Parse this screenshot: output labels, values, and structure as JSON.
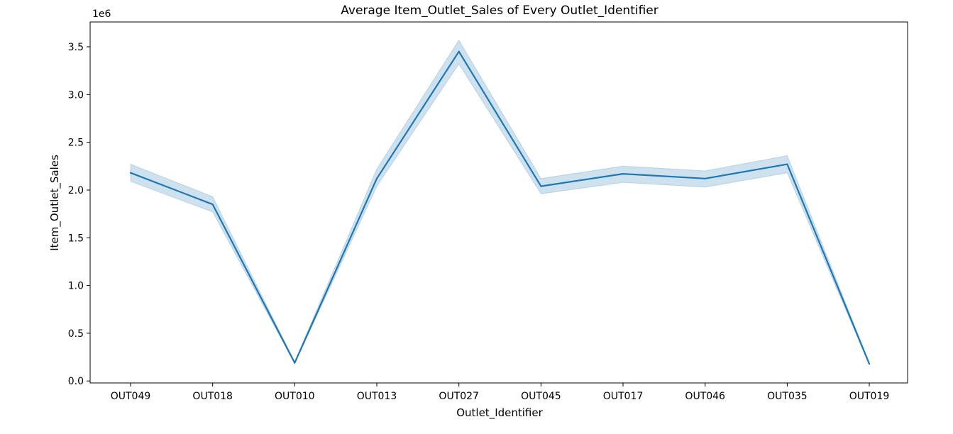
{
  "chart_data": {
    "type": "line",
    "title": "Average Item_Outlet_Sales of Every Outlet_Identifier",
    "xlabel": "Outlet_Identifier",
    "ylabel": "Item_Outlet_Sales",
    "y_multiplier_label": "1e6",
    "categories": [
      "OUT049",
      "OUT018",
      "OUT010",
      "OUT013",
      "OUT027",
      "OUT045",
      "OUT017",
      "OUT046",
      "OUT035",
      "OUT019"
    ],
    "series": [
      {
        "values": [
          2.18,
          1.85,
          0.19,
          2.12,
          3.45,
          2.04,
          2.17,
          2.12,
          2.27,
          0.18
        ],
        "ci_lower": [
          2.09,
          1.77,
          0.18,
          2.04,
          3.32,
          1.96,
          2.08,
          2.03,
          2.18,
          0.17
        ],
        "ci_upper": [
          2.27,
          1.93,
          0.2,
          2.22,
          3.57,
          2.12,
          2.25,
          2.2,
          2.36,
          0.19
        ]
      }
    ],
    "y_ticks": [
      "0.0",
      "0.5",
      "1.0",
      "1.5",
      "2.0",
      "2.5",
      "3.0",
      "3.5"
    ],
    "y_tick_values": [
      0.0,
      0.5,
      1.0,
      1.5,
      2.0,
      2.5,
      3.0,
      3.5
    ],
    "ylim": [
      -0.0205,
      3.76
    ],
    "grid": false,
    "legend": "none",
    "colors": {
      "line": "#1f77b4",
      "band": "#1f77b4"
    }
  }
}
